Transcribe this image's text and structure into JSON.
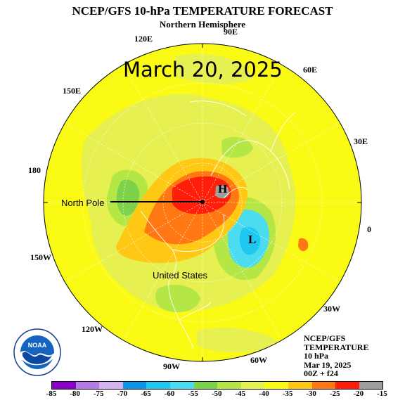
{
  "title": "NCEP/GFS 10-hPa TEMPERATURE FORECAST",
  "subtitle": "Northern Hemisphere",
  "date_overlay": "March 20, 2025",
  "longitude_labels": [
    "90E",
    "120E",
    "60E",
    "150E",
    "30E",
    "180",
    "0",
    "150W",
    "30W",
    "120W",
    "90W",
    "60W"
  ],
  "annotations": {
    "north_pole": "North Pole",
    "united_states": "United States"
  },
  "pressure_centers": {
    "high": "H",
    "low": "L"
  },
  "info_box": [
    "NCEP/GFS",
    "TEMPERATURE",
    "10 hPa",
    "Mar 19, 2025",
    "00Z + f24"
  ],
  "colorbar": {
    "ticks": [
      "-85",
      "-80",
      "-75",
      "-70",
      "-65",
      "-60",
      "-55",
      "-50",
      "-45",
      "-40",
      "-35",
      "-30",
      "-25",
      "-20",
      "-15"
    ],
    "colors": [
      "#8a00c8",
      "#b47ae6",
      "#d7b2f0",
      "#0a96e6",
      "#1ec8f0",
      "#4bdcf0",
      "#7ed24b",
      "#b4e646",
      "#e6f050",
      "#fafa14",
      "#ffc814",
      "#ff7814",
      "#ff1e0a",
      "#9e9e9e"
    ]
  },
  "logo_text": {
    "center": "NOAA",
    "ring": "NATIONAL OCEANIC AND ATMOSPHERIC ADMINISTRATION · U.S. DEPARTMENT OF COMMERCE"
  }
}
